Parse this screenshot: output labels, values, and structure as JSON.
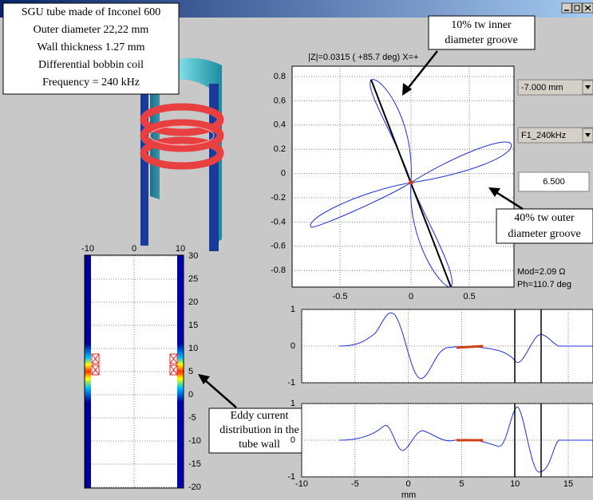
{
  "window": {
    "callouts": {
      "setup": [
        "SGU tube made of Inconel 600",
        "Outer diameter 22,22 mm",
        "Wall thickness 1.27 mm",
        "Differential bobbin coil",
        "Frequency = 240 kHz"
      ],
      "inner_groove": [
        "10% tw inner",
        "diameter groove"
      ],
      "outer_groove": [
        "40% tw outer",
        "diameter groove"
      ],
      "eddy": [
        "Eddy current",
        "distribution in the",
        "tube wall"
      ]
    },
    "impedance_plot": {
      "header": "|Z|=0.0315 ( +85.7 deg) X=+",
      "xticks": [
        -0.5,
        0,
        0.5
      ],
      "yticks": [
        0.8,
        0.6,
        0.4,
        0.2,
        0,
        -0.2,
        -0.4,
        -0.6,
        -0.8
      ]
    },
    "controls": {
      "depth": "-7.000 mm",
      "frequency": "F1_240kHz",
      "value": "6.500"
    },
    "readout": {
      "mod": "Mod=2.09 Ω",
      "phase": "Ph=110.7 deg"
    },
    "field_plot": {
      "xticks": [
        -10,
        0,
        10
      ],
      "yticks": [
        30,
        25,
        20,
        15,
        10,
        5,
        0,
        -5,
        -10,
        -15,
        -20
      ]
    },
    "signal_plots": {
      "top_yticks": [
        1,
        0,
        -1
      ],
      "bottom_yticks": [
        1,
        0,
        -1
      ],
      "xticks": [
        -10,
        -5,
        0,
        5,
        10,
        15
      ],
      "xlabel": "mm"
    }
  }
}
